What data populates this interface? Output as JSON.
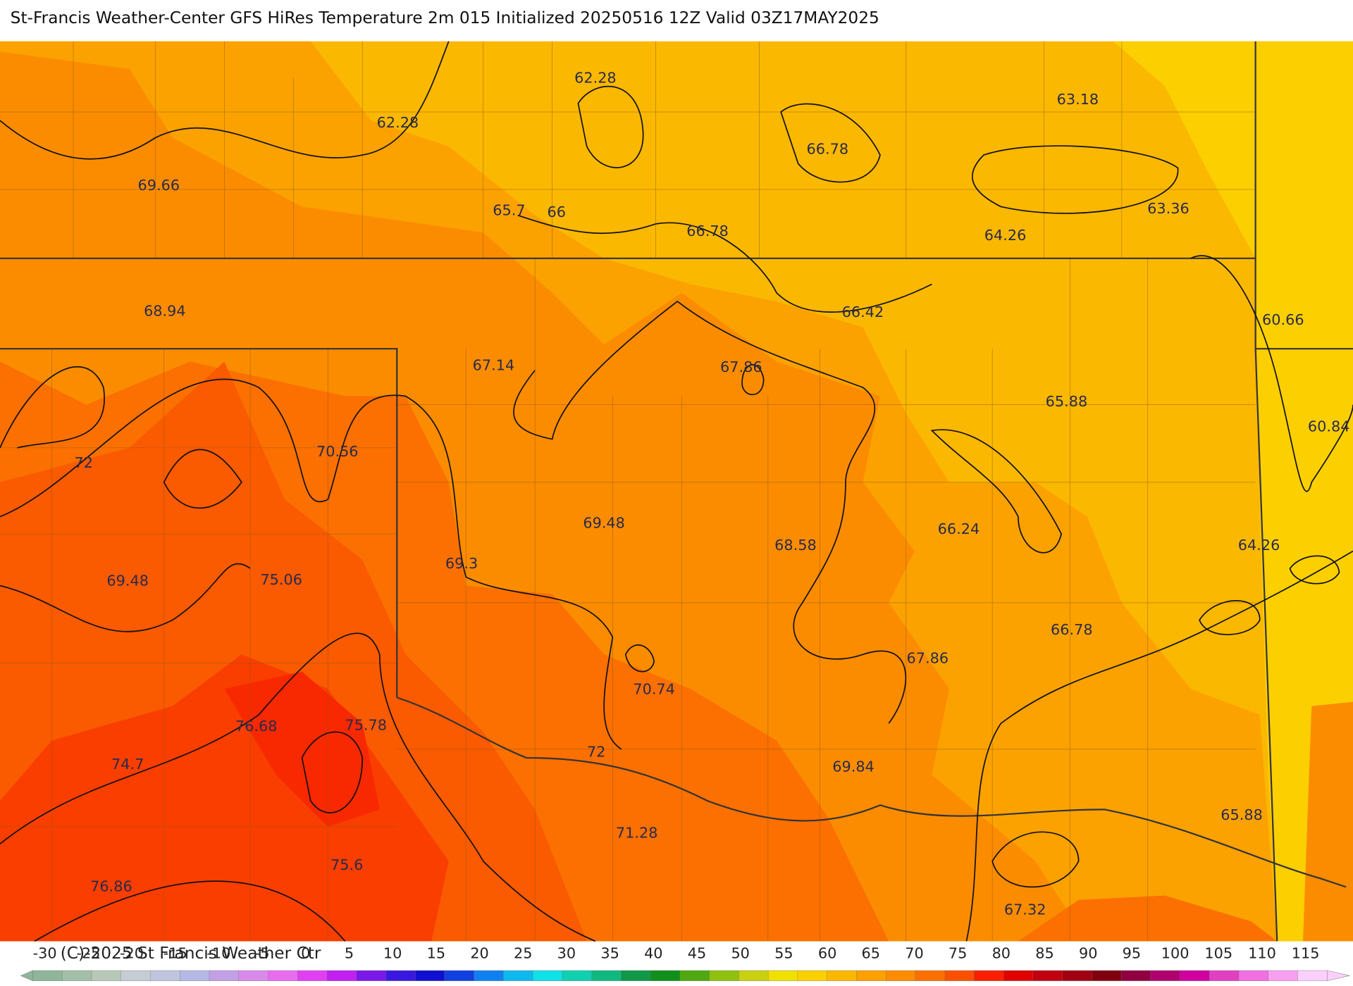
{
  "title": "St-Francis Weather-Center GFS HiRes Temperature 2m  015 Initialized 20250516 12Z Valid 03Z17MAY2025",
  "map_labels": [
    "62.28",
    "62.28",
    "63.18",
    "66.78",
    "69.66",
    "65.7",
    "66",
    "66.78",
    "64.26",
    "63.36",
    "68.94",
    "66.42",
    "60.66",
    "67.14",
    "67.86",
    "65.88",
    "60.84",
    "72",
    "70.56",
    "69.48",
    "66.24",
    "68.58",
    "64.26",
    "69.3",
    "69.48",
    "75.06",
    "66.78",
    "67.86",
    "70.74",
    "76.68",
    "75.78",
    "72",
    "74.7",
    "69.84",
    "65.88",
    "71.28",
    "75.6",
    "76.86",
    "67.32"
  ],
  "colorbar_ticks": [
    -30,
    -25,
    -20,
    -15,
    -10,
    -5,
    0,
    5,
    10,
    15,
    20,
    25,
    30,
    35,
    40,
    45,
    50,
    55,
    60,
    65,
    70,
    75,
    80,
    85,
    90,
    95,
    100,
    105,
    110,
    115
  ],
  "copyright": "(C)-2025 St Francis Weather Ctr"
}
